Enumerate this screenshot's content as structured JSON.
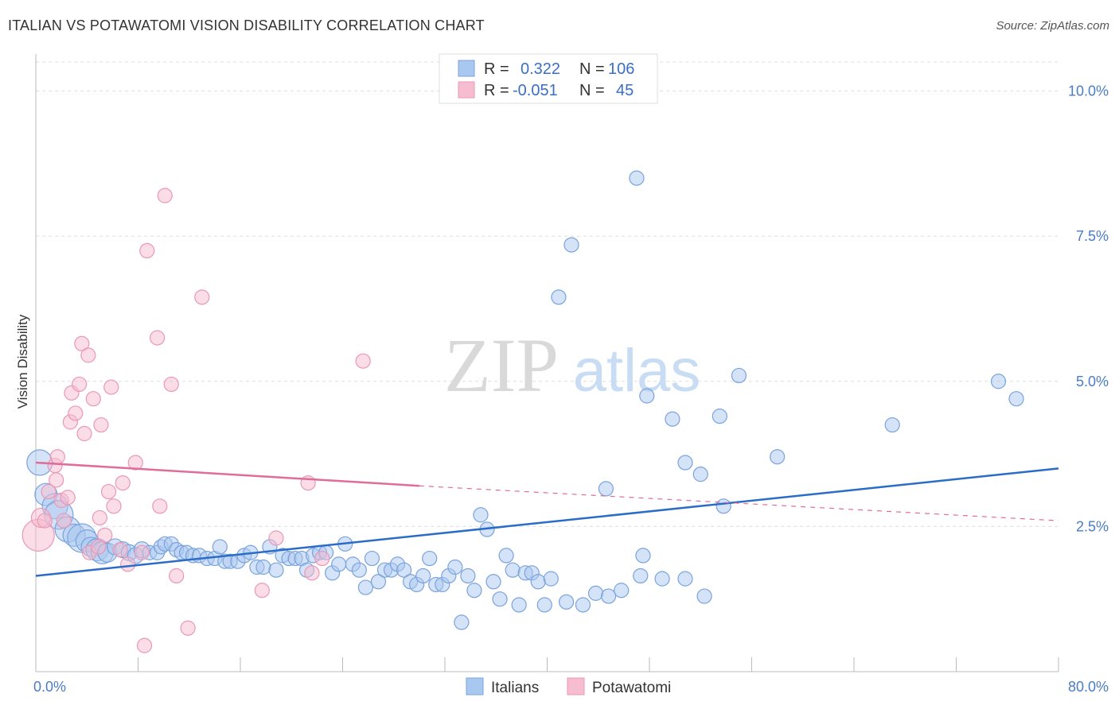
{
  "header": {
    "title": "ITALIAN VS POTAWATOMI VISION DISABILITY CORRELATION CHART",
    "source": "Source: ZipAtlas.com"
  },
  "watermark": {
    "zip": "ZIP",
    "atlas": "atlas"
  },
  "legend": {
    "r_label": "R =",
    "n_label": "N =",
    "italians": {
      "r": "0.322",
      "n": "106"
    },
    "potawatomi": {
      "r": "-0.051",
      "n": "45"
    }
  },
  "colors": {
    "italians_fill": "#a9c8f0",
    "italians_stroke": "#7aa3dc",
    "italians_line": "#2b6cc8",
    "potawatomi_fill": "#f6bcd0",
    "potawatomi_stroke": "#ea98b6",
    "potawatomi_line": "#e06c98",
    "tick_label": "#4a7cc7"
  },
  "chart_data": {
    "type": "scatter",
    "title": "ITALIAN VS POTAWATOMI VISION DISABILITY CORRELATION CHART",
    "xlabel": "",
    "ylabel": "Vision Disability",
    "xlim": [
      0,
      80
    ],
    "ylim": [
      0,
      10.5
    ],
    "x_tick_labels": [
      "0.0%",
      "80.0%"
    ],
    "y_ticks": [
      2.5,
      5.0,
      7.5,
      10.0
    ],
    "y_tick_labels": [
      "2.5%",
      "5.0%",
      "7.5%",
      "10.0%"
    ],
    "grid": true,
    "legend_position": "top-center",
    "series": [
      {
        "name": "Italians",
        "r": 0.322,
        "n": 106,
        "trend": {
          "x": [
            0,
            80
          ],
          "y": [
            1.65,
            3.5
          ]
        },
        "points": [
          [
            0.3,
            3.6,
            16
          ],
          [
            0.8,
            3.05,
            14
          ],
          [
            1.5,
            2.85,
            16
          ],
          [
            1.8,
            2.7,
            18
          ],
          [
            2.5,
            2.45,
            16
          ],
          [
            3.0,
            2.35,
            14
          ],
          [
            3.6,
            2.3,
            18
          ],
          [
            4.0,
            2.25,
            14
          ],
          [
            4.3,
            2.15,
            12
          ],
          [
            4.8,
            2.1,
            14
          ],
          [
            5.2,
            2.05,
            14
          ],
          [
            5.6,
            2.05,
            12
          ],
          [
            6.2,
            2.15,
            10
          ],
          [
            6.8,
            2.1,
            10
          ],
          [
            7.3,
            2.05,
            10
          ],
          [
            7.8,
            2.0,
            10
          ],
          [
            8.3,
            2.1,
            10
          ],
          [
            8.9,
            2.05,
            9
          ],
          [
            9.5,
            2.05,
            9
          ],
          [
            9.8,
            2.15,
            9
          ],
          [
            10.1,
            2.2,
            9
          ],
          [
            10.6,
            2.2,
            9
          ],
          [
            11.0,
            2.1,
            9
          ],
          [
            11.4,
            2.05,
            9
          ],
          [
            11.8,
            2.05,
            9
          ],
          [
            12.3,
            2.0,
            9
          ],
          [
            12.8,
            2.0,
            9
          ],
          [
            13.4,
            1.95,
            9
          ],
          [
            14.0,
            1.95,
            9
          ],
          [
            14.4,
            2.15,
            9
          ],
          [
            14.8,
            1.9,
            9
          ],
          [
            15.2,
            1.9,
            9
          ],
          [
            15.8,
            1.9,
            9
          ],
          [
            16.3,
            2.0,
            9
          ],
          [
            16.8,
            2.05,
            9
          ],
          [
            17.3,
            1.8,
            9
          ],
          [
            17.8,
            1.8,
            9
          ],
          [
            18.3,
            2.15,
            9
          ],
          [
            18.8,
            1.75,
            9
          ],
          [
            19.3,
            2.0,
            9
          ],
          [
            19.8,
            1.95,
            9
          ],
          [
            20.3,
            1.95,
            9
          ],
          [
            20.8,
            1.95,
            9
          ],
          [
            21.2,
            1.75,
            9
          ],
          [
            21.7,
            2.0,
            9
          ],
          [
            22.2,
            2.05,
            9
          ],
          [
            22.7,
            2.05,
            9
          ],
          [
            23.2,
            1.7,
            9
          ],
          [
            23.7,
            1.85,
            9
          ],
          [
            24.2,
            2.2,
            9
          ],
          [
            24.8,
            1.85,
            9
          ],
          [
            25.3,
            1.75,
            9
          ],
          [
            25.8,
            1.45,
            9
          ],
          [
            26.3,
            1.95,
            9
          ],
          [
            26.8,
            1.55,
            9
          ],
          [
            27.3,
            1.75,
            9
          ],
          [
            27.8,
            1.75,
            9
          ],
          [
            28.3,
            1.85,
            9
          ],
          [
            28.8,
            1.75,
            9
          ],
          [
            29.3,
            1.55,
            9
          ],
          [
            29.8,
            1.5,
            9
          ],
          [
            30.3,
            1.65,
            9
          ],
          [
            30.8,
            1.95,
            9
          ],
          [
            31.3,
            1.5,
            9
          ],
          [
            31.8,
            1.5,
            9
          ],
          [
            32.3,
            1.65,
            9
          ],
          [
            32.8,
            1.8,
            9
          ],
          [
            33.3,
            0.85,
            9
          ],
          [
            33.8,
            1.65,
            9
          ],
          [
            34.3,
            1.4,
            9
          ],
          [
            34.8,
            2.7,
            9
          ],
          [
            35.3,
            2.45,
            9
          ],
          [
            35.8,
            1.55,
            9
          ],
          [
            36.3,
            1.25,
            9
          ],
          [
            36.8,
            2.0,
            9
          ],
          [
            37.3,
            1.75,
            9
          ],
          [
            37.8,
            1.15,
            9
          ],
          [
            38.3,
            1.7,
            9
          ],
          [
            38.8,
            1.7,
            9
          ],
          [
            39.3,
            1.55,
            9
          ],
          [
            39.8,
            1.15,
            9
          ],
          [
            40.3,
            1.6,
            9
          ],
          [
            40.9,
            6.45,
            9
          ],
          [
            41.5,
            1.2,
            9
          ],
          [
            41.9,
            7.35,
            9
          ],
          [
            42.8,
            1.15,
            9
          ],
          [
            43.8,
            1.35,
            9
          ],
          [
            44.6,
            3.15,
            9
          ],
          [
            44.8,
            1.3,
            9
          ],
          [
            45.8,
            1.4,
            9
          ],
          [
            47.0,
            8.5,
            9
          ],
          [
            47.3,
            1.65,
            9
          ],
          [
            47.5,
            2.0,
            9
          ],
          [
            47.8,
            4.75,
            9
          ],
          [
            49.0,
            1.6,
            9
          ],
          [
            49.8,
            4.35,
            9
          ],
          [
            50.8,
            3.6,
            9
          ],
          [
            50.8,
            1.6,
            9
          ],
          [
            52.0,
            3.4,
            9
          ],
          [
            52.3,
            1.3,
            9
          ],
          [
            53.5,
            4.4,
            9
          ],
          [
            53.8,
            2.85,
            9
          ],
          [
            55.0,
            5.1,
            9
          ],
          [
            58.0,
            3.7,
            9
          ],
          [
            67.0,
            4.25,
            9
          ],
          [
            75.3,
            5.0,
            9
          ],
          [
            76.7,
            4.7,
            9
          ]
        ]
      },
      {
        "name": "Potawatomi",
        "r": -0.051,
        "n": 45,
        "trend": {
          "x": [
            0,
            30
          ],
          "y": [
            3.6,
            3.2
          ]
        },
        "trend_dashed": {
          "x": [
            30,
            80
          ],
          "y": [
            3.2,
            2.6
          ]
        },
        "points": [
          [
            0.2,
            2.35,
            20
          ],
          [
            0.4,
            2.65,
            12
          ],
          [
            0.7,
            2.6,
            9
          ],
          [
            1.0,
            3.1,
            9
          ],
          [
            1.5,
            3.55,
            9
          ],
          [
            1.6,
            3.3,
            9
          ],
          [
            1.7,
            3.7,
            9
          ],
          [
            2.0,
            2.95,
            9
          ],
          [
            2.2,
            2.6,
            9
          ],
          [
            2.5,
            3.0,
            9
          ],
          [
            2.7,
            4.3,
            9
          ],
          [
            2.8,
            4.8,
            9
          ],
          [
            3.1,
            4.45,
            9
          ],
          [
            3.4,
            4.95,
            9
          ],
          [
            3.6,
            5.65,
            9
          ],
          [
            3.8,
            4.1,
            9
          ],
          [
            4.1,
            5.45,
            9
          ],
          [
            4.2,
            2.05,
            9
          ],
          [
            4.5,
            4.7,
            9
          ],
          [
            4.9,
            2.15,
            9
          ],
          [
            5.0,
            2.65,
            9
          ],
          [
            5.1,
            4.25,
            9
          ],
          [
            5.4,
            2.35,
            9
          ],
          [
            5.7,
            3.1,
            9
          ],
          [
            5.9,
            4.9,
            9
          ],
          [
            6.1,
            2.85,
            9
          ],
          [
            6.6,
            2.1,
            9
          ],
          [
            6.8,
            3.25,
            9
          ],
          [
            7.2,
            1.85,
            9
          ],
          [
            7.8,
            3.6,
            9
          ],
          [
            8.3,
            2.05,
            9
          ],
          [
            8.5,
            0.45,
            9
          ],
          [
            8.7,
            7.25,
            9
          ],
          [
            9.5,
            5.75,
            9
          ],
          [
            9.7,
            2.85,
            9
          ],
          [
            10.1,
            8.2,
            9
          ],
          [
            10.6,
            4.95,
            9
          ],
          [
            11.0,
            1.65,
            9
          ],
          [
            11.9,
            0.75,
            9
          ],
          [
            13.0,
            6.45,
            9
          ],
          [
            17.7,
            1.4,
            9
          ],
          [
            18.8,
            2.3,
            9
          ],
          [
            21.3,
            3.25,
            9
          ],
          [
            21.6,
            1.7,
            9
          ],
          [
            22.4,
            1.95,
            9
          ],
          [
            25.6,
            5.35,
            9
          ]
        ]
      }
    ]
  }
}
